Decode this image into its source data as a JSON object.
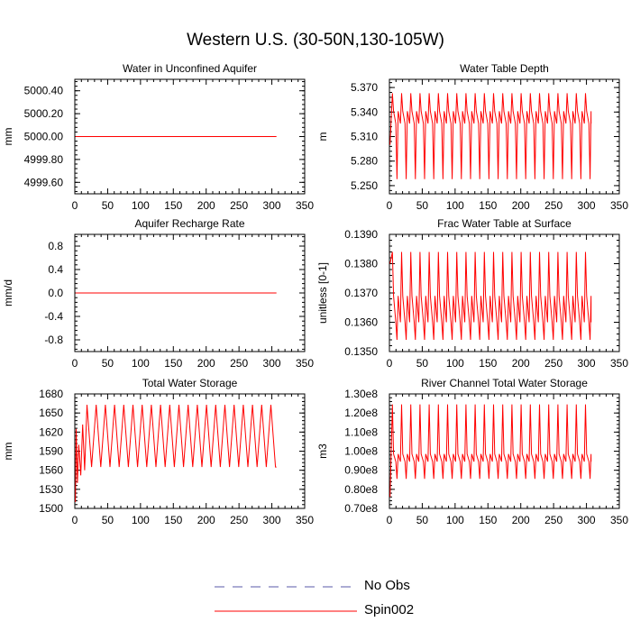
{
  "figure": {
    "title": "Western U.S. (30-50N,130-105W)"
  },
  "legend": [
    {
      "label": "No Obs",
      "color": "#5a5aa8",
      "dash": true
    },
    {
      "label": "Spin002",
      "color": "#ff0000",
      "dash": false
    }
  ],
  "chart_data": [
    {
      "type": "line",
      "title": "Water in Unconfined Aquifer",
      "ylabel": "mm",
      "xlim": [
        0,
        350
      ],
      "ylim": [
        4999.5,
        5000.5
      ],
      "xticks": [
        0,
        50,
        100,
        150,
        200,
        250,
        300,
        350
      ],
      "yticks": [
        "4999.60",
        "4999.80",
        "5000.00",
        "5000.20",
        "5000.40"
      ],
      "ytick_values": [
        4999.6,
        4999.8,
        5000.0,
        5000.2,
        5000.4
      ],
      "series": [
        {
          "name": "Spin002",
          "color": "#ff0000",
          "shape": "constant",
          "x_range": [
            1,
            307
          ],
          "value": 5000.0
        }
      ]
    },
    {
      "type": "line",
      "title": "Water Table Depth",
      "ylabel": "m",
      "xlim": [
        0,
        350
      ],
      "ylim": [
        5.24,
        5.38
      ],
      "xticks": [
        0,
        50,
        100,
        150,
        200,
        250,
        300,
        350
      ],
      "yticks": [
        "5.250",
        "5.280",
        "5.310",
        "5.340",
        "5.370"
      ],
      "ytick_values": [
        5.25,
        5.28,
        5.31,
        5.34,
        5.37
      ],
      "series": [
        {
          "name": "Spin002",
          "color": "#ff0000",
          "shape": "oscillation",
          "x_range": [
            1,
            307
          ],
          "period": 7,
          "low": 5.258,
          "high": 5.363,
          "minor_low": 5.326,
          "minor_high": 5.341,
          "start": 5.3
        }
      ]
    },
    {
      "type": "line",
      "title": "Aquifer Recharge Rate",
      "ylabel": "mm/d",
      "xlim": [
        0,
        350
      ],
      "ylim": [
        -1.0,
        1.0
      ],
      "xticks": [
        0,
        50,
        100,
        150,
        200,
        250,
        300,
        350
      ],
      "yticks": [
        "-0.8",
        "-0.4",
        "0.0",
        "0.4",
        "0.8"
      ],
      "ytick_values": [
        -0.8,
        -0.4,
        0.0,
        0.4,
        0.8
      ],
      "series": [
        {
          "name": "Spin002",
          "color": "#ff0000",
          "shape": "constant",
          "x_range": [
            1,
            307
          ],
          "value": 0.0
        }
      ]
    },
    {
      "type": "line",
      "title": "Frac Water Table at Surface",
      "ylabel": "unitless [0-1]",
      "xlim": [
        0,
        350
      ],
      "ylim": [
        0.135,
        0.139
      ],
      "xticks": [
        0,
        50,
        100,
        150,
        200,
        250,
        300,
        350
      ],
      "yticks": [
        "0.1350",
        "0.1360",
        "0.1370",
        "0.1380",
        "0.1390"
      ],
      "ytick_values": [
        0.135,
        0.136,
        0.137,
        0.138,
        0.139
      ],
      "series": [
        {
          "name": "Spin002",
          "color": "#ff0000",
          "shape": "oscillation",
          "x_range": [
            1,
            307
          ],
          "period": 7,
          "low": 0.1354,
          "high": 0.1384,
          "minor_low": 0.136,
          "minor_high": 0.1369,
          "start": 0.138
        }
      ]
    },
    {
      "type": "line",
      "title": "Total Water Storage",
      "ylabel": "mm",
      "xlim": [
        0,
        350
      ],
      "ylim": [
        1500,
        1680
      ],
      "xticks": [
        0,
        50,
        100,
        150,
        200,
        250,
        300,
        350
      ],
      "yticks": [
        "1500",
        "1530",
        "1560",
        "1590",
        "1620",
        "1650",
        "1680"
      ],
      "ytick_values": [
        1500,
        1530,
        1560,
        1590,
        1620,
        1650,
        1680
      ],
      "series": [
        {
          "name": "Spin002",
          "color": "#ff0000",
          "shape": "oscillation",
          "x_range": [
            1,
            307
          ],
          "period": 7,
          "low": 1565,
          "high": 1663,
          "minor_low": 1565,
          "minor_high": 1565,
          "start": 1510,
          "spinup": [
            [
              1,
              1510
            ],
            [
              2,
              1625
            ],
            [
              4,
              1540
            ],
            [
              6,
              1600
            ],
            [
              9,
              1552
            ],
            [
              12,
              1632
            ],
            [
              15,
              1560
            ]
          ]
        }
      ]
    },
    {
      "type": "line",
      "title": "River Channel Total Water Storage",
      "ylabel": "m3",
      "xlim": [
        0,
        350
      ],
      "ylim": [
        0.7,
        1.3
      ],
      "xticks": [
        0,
        50,
        100,
        150,
        200,
        250,
        300,
        350
      ],
      "yticks": [
        "0.70e8",
        "0.80e8",
        "0.90e8",
        "1.00e8",
        "1.10e8",
        "1.20e8",
        "1.30e8"
      ],
      "ytick_values": [
        0.7,
        0.8,
        0.9,
        1.0,
        1.1,
        1.2,
        1.3
      ],
      "series": [
        {
          "name": "Spin002",
          "color": "#ff0000",
          "shape": "oscillation",
          "x_range": [
            1,
            307
          ],
          "period": 7,
          "low": 0.855,
          "high": 1.245,
          "minor_low": 0.945,
          "minor_high": 0.985,
          "start": 0.76
        }
      ]
    }
  ]
}
